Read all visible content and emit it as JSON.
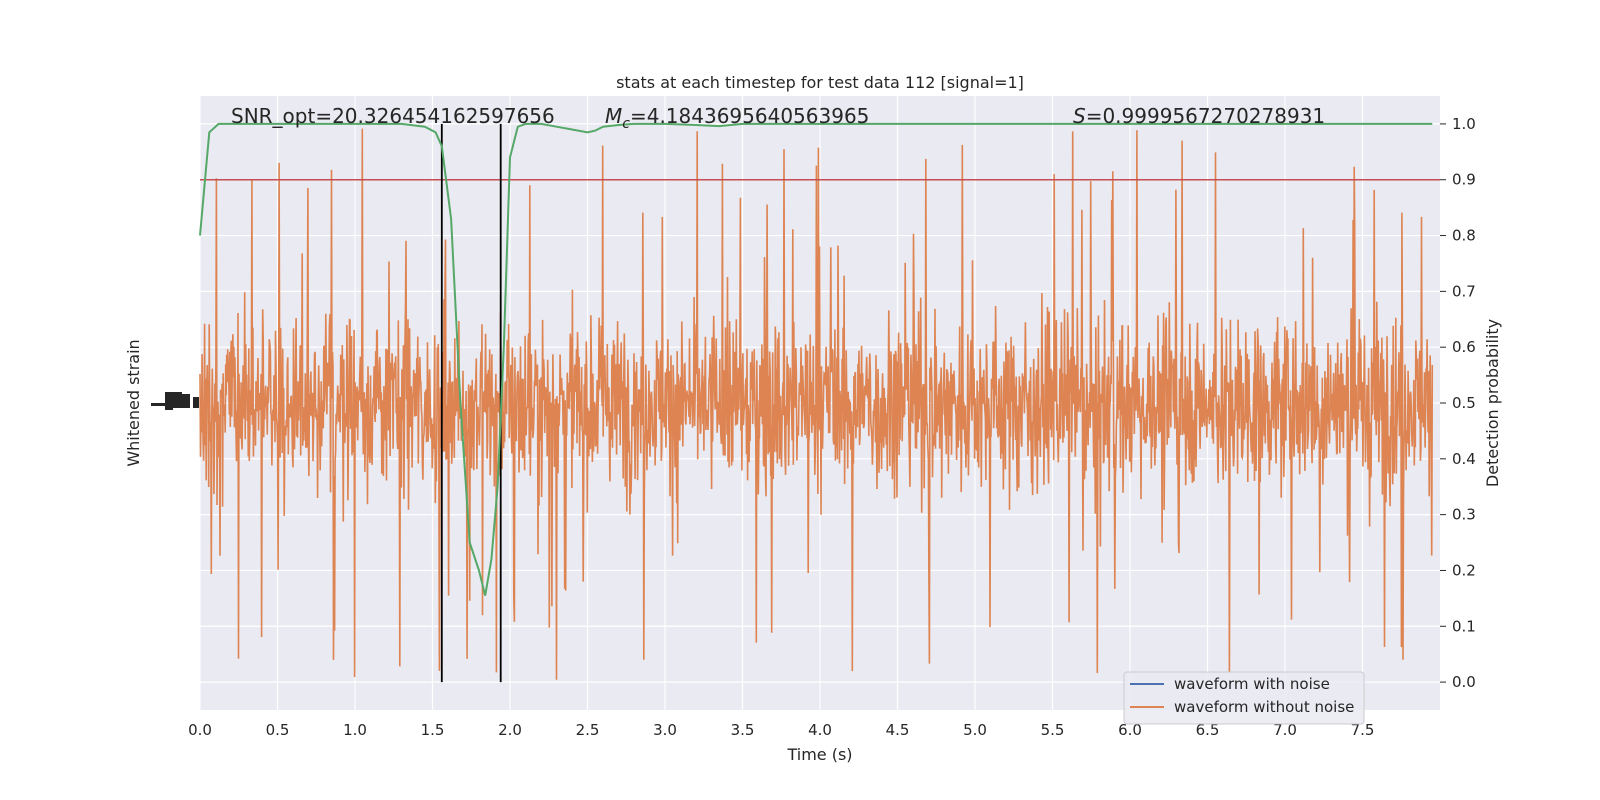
{
  "chart_data": {
    "type": "line",
    "title": "stats at each timestep for test data 112 [signal=1]",
    "xlabel": "Time (s)",
    "ylabel_left": "Whitened strain",
    "ylabel_right": "Detection probability",
    "xlim": [
      0.0,
      8.0
    ],
    "ylim_right": [
      -0.05,
      1.05
    ],
    "x_ticks": [
      "0.0",
      "0.5",
      "1.0",
      "1.5",
      "2.0",
      "2.5",
      "3.0",
      "3.5",
      "4.0",
      "4.5",
      "5.0",
      "5.5",
      "6.0",
      "6.5",
      "7.0",
      "7.5"
    ],
    "y_right_ticks": [
      "0.0",
      "0.1",
      "0.2",
      "0.3",
      "0.4",
      "0.5",
      "0.6",
      "0.7",
      "0.8",
      "0.9",
      "1.0"
    ],
    "annotations": {
      "snr": "SNR_opt=20.326454162597656",
      "mc_symbol": "M",
      "mc_sub": "c",
      "mc_value": "=4.1843695640563965",
      "s_symbol": "S",
      "s_value": "=0.9999567270278931"
    },
    "threshold": {
      "y": 0.9,
      "color": "#c44e52"
    },
    "vertical_lines": [
      1.56,
      1.94
    ],
    "legend": {
      "location": "lower right",
      "entries": [
        {
          "label": "waveform with noise",
          "color": "#4c72b0"
        },
        {
          "label": "waveform without noise",
          "color": "#dd8452"
        }
      ]
    },
    "probability_series": {
      "name": "",
      "color": "#55a868",
      "x": [
        0.0,
        0.06,
        0.12,
        0.2,
        0.3,
        0.5,
        0.7,
        0.9,
        1.1,
        1.3,
        1.45,
        1.52,
        1.56,
        1.62,
        1.68,
        1.74,
        1.8,
        1.84,
        1.88,
        1.92,
        1.96,
        2.0,
        2.05,
        2.1,
        2.2,
        2.3,
        2.4,
        2.5,
        2.55,
        2.6,
        2.7,
        2.8,
        3.0,
        3.2,
        3.35,
        3.5,
        4.0,
        5.0,
        6.0,
        7.0,
        7.95
      ],
      "y": [
        0.8,
        0.985,
        1.0,
        1.0,
        1.0,
        1.0,
        1.0,
        1.0,
        1.0,
        1.0,
        0.995,
        0.985,
        0.96,
        0.83,
        0.5,
        0.25,
        0.2,
        0.155,
        0.22,
        0.35,
        0.6,
        0.94,
        0.995,
        1.0,
        1.0,
        0.995,
        0.99,
        0.985,
        0.988,
        0.995,
        0.998,
        1.0,
        1.0,
        0.998,
        0.996,
        1.0,
        1.0,
        1.0,
        1.0,
        1.0,
        1.0
      ]
    },
    "strain_series": {
      "name": "",
      "color": "#dd8452",
      "note_prob_scale_range": [
        0.0,
        1.0
      ]
    }
  }
}
